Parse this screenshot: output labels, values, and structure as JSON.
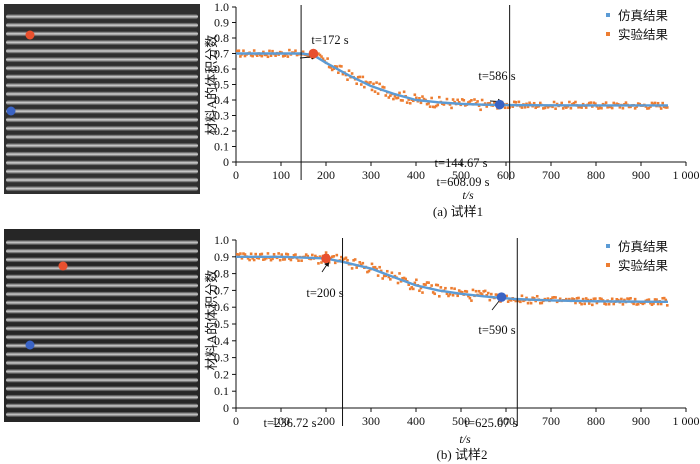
{
  "chart_data": [
    {
      "type": "line",
      "caption": "(a)  试样1",
      "xlabel": "t/s",
      "ylabel": "材料A的体积分数",
      "xlim": [
        0,
        1000
      ],
      "ylim": [
        0,
        1.0
      ],
      "x_ticks": [
        "0",
        "100",
        "200",
        "300",
        "400",
        "500",
        "600",
        "700",
        "800",
        "900",
        "1 000"
      ],
      "y_ticks": [
        "0",
        "0.1",
        "0.2",
        "0.3",
        "0.4",
        "0.5",
        "0.6",
        "0.7",
        "0.8",
        "0.9",
        "1.0"
      ],
      "legend_position": "top-right",
      "series": [
        {
          "name": "仿真结果",
          "color": "#5b9bd5",
          "kind": "line",
          "x": [
            0,
            100,
            144.67,
            172,
            200,
            250,
            300,
            350,
            400,
            450,
            500,
            550,
            586,
            608.09,
            700,
            800,
            900,
            960
          ],
          "y": [
            0.7,
            0.7,
            0.7,
            0.69,
            0.64,
            0.56,
            0.49,
            0.44,
            0.4,
            0.385,
            0.375,
            0.37,
            0.368,
            0.367,
            0.366,
            0.365,
            0.365,
            0.365
          ]
        },
        {
          "name": "实验结果",
          "color": "#ed7d31",
          "kind": "scatter",
          "x": [],
          "y": []
        }
      ],
      "vlines": [
        {
          "x": 144.67,
          "label": "t=144.67 s"
        },
        {
          "x": 608.09,
          "label": "t=608.09 s"
        }
      ],
      "markers": [
        {
          "x": 172,
          "y": 0.7,
          "label": "t=172 s",
          "color": "#e8502e"
        },
        {
          "x": 586,
          "y": 0.37,
          "label": "t=586 s",
          "color": "#3a63c4"
        }
      ]
    },
    {
      "type": "line",
      "caption": "(b)  试样2",
      "xlabel": "t/s",
      "ylabel": "材料A的体积分数",
      "xlim": [
        0,
        1000
      ],
      "ylim": [
        0,
        1.0
      ],
      "x_ticks": [
        "0",
        "100",
        "200",
        "300",
        "400",
        "500",
        "600",
        "700",
        "800",
        "900",
        "1 000"
      ],
      "y_ticks": [
        "0",
        "0.1",
        "0.2",
        "0.3",
        "0.4",
        "0.5",
        "0.6",
        "0.7",
        "0.8",
        "0.9",
        "1.0"
      ],
      "legend_position": "top-right",
      "series": [
        {
          "name": "仿真结果",
          "color": "#5b9bd5",
          "kind": "line",
          "x": [
            0,
            100,
            200,
            236.72,
            300,
            350,
            400,
            450,
            500,
            550,
            590,
            625.07,
            700,
            800,
            900,
            960
          ],
          "y": [
            0.9,
            0.9,
            0.89,
            0.87,
            0.83,
            0.78,
            0.73,
            0.7,
            0.68,
            0.665,
            0.655,
            0.648,
            0.64,
            0.635,
            0.633,
            0.632
          ]
        },
        {
          "name": "实验结果",
          "color": "#ed7d31",
          "kind": "scatter",
          "x": [],
          "y": []
        }
      ],
      "vlines": [
        {
          "x": 236.72,
          "label": "t=236.72 s"
        },
        {
          "x": 625.07,
          "label": "t=625.07 s"
        }
      ],
      "markers": [
        {
          "x": 200,
          "y": 0.89,
          "label": "t=200 s",
          "color": "#e8502e"
        },
        {
          "x": 590,
          "y": 0.66,
          "label": "t=590 s",
          "color": "#3a63c4"
        }
      ]
    }
  ]
}
